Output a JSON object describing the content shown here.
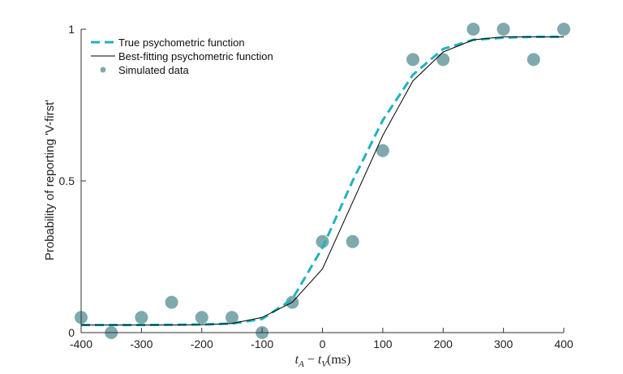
{
  "chart_data": {
    "type": "line",
    "xlabel_parts": {
      "a": "t",
      "a_sub": "A",
      "minus": "−",
      "b": "t",
      "b_sub": "V",
      "unit": "(ms)"
    },
    "ylabel": "Probability of reporting 'V-first'",
    "xlim": [
      -400,
      400
    ],
    "ylim": [
      0,
      1
    ],
    "xticks": [
      -400,
      -300,
      -200,
      -100,
      0,
      100,
      200,
      300,
      400
    ],
    "xtick_labels": [
      "-400",
      "-300",
      "-200",
      "-100",
      "0",
      "100",
      "200",
      "300",
      "400"
    ],
    "yticks": [
      0,
      0.5,
      1
    ],
    "ytick_labels": [
      "0",
      "0.5",
      "1"
    ],
    "grid": false,
    "legend_position": "top-left",
    "series": [
      {
        "name": "True psychometric function",
        "kind": "dashed-line",
        "color": "#20b2bc",
        "x": [
          -400,
          -350,
          -300,
          -250,
          -200,
          -150,
          -100,
          -50,
          0,
          50,
          100,
          150,
          200,
          250,
          300,
          350,
          400
        ],
        "y": [
          0.025,
          0.025,
          0.025,
          0.026,
          0.027,
          0.03,
          0.045,
          0.11,
          0.28,
          0.5,
          0.7,
          0.85,
          0.935,
          0.965,
          0.972,
          0.975,
          0.975
        ]
      },
      {
        "name": "Best-fitting psychometric function",
        "kind": "solid-line",
        "color": "#000000",
        "x": [
          -400,
          -350,
          -300,
          -250,
          -200,
          -150,
          -100,
          -50,
          0,
          50,
          100,
          150,
          200,
          250,
          300,
          350,
          400
        ],
        "y": [
          0.025,
          0.025,
          0.025,
          0.025,
          0.026,
          0.03,
          0.05,
          0.1,
          0.21,
          0.43,
          0.65,
          0.83,
          0.925,
          0.965,
          0.975,
          0.975,
          0.975
        ]
      },
      {
        "name": "Simulated data",
        "kind": "points",
        "color": "#7fa9ad",
        "x": [
          -400,
          -350,
          -300,
          -250,
          -200,
          -150,
          -100,
          -50,
          0,
          50,
          100,
          150,
          200,
          250,
          300,
          350,
          400
        ],
        "y": [
          0.05,
          0.0,
          0.05,
          0.1,
          0.05,
          0.05,
          0.0,
          0.1,
          0.3,
          0.3,
          0.6,
          0.9,
          0.9,
          1.0,
          1.0,
          0.9,
          1.0
        ]
      }
    ]
  }
}
